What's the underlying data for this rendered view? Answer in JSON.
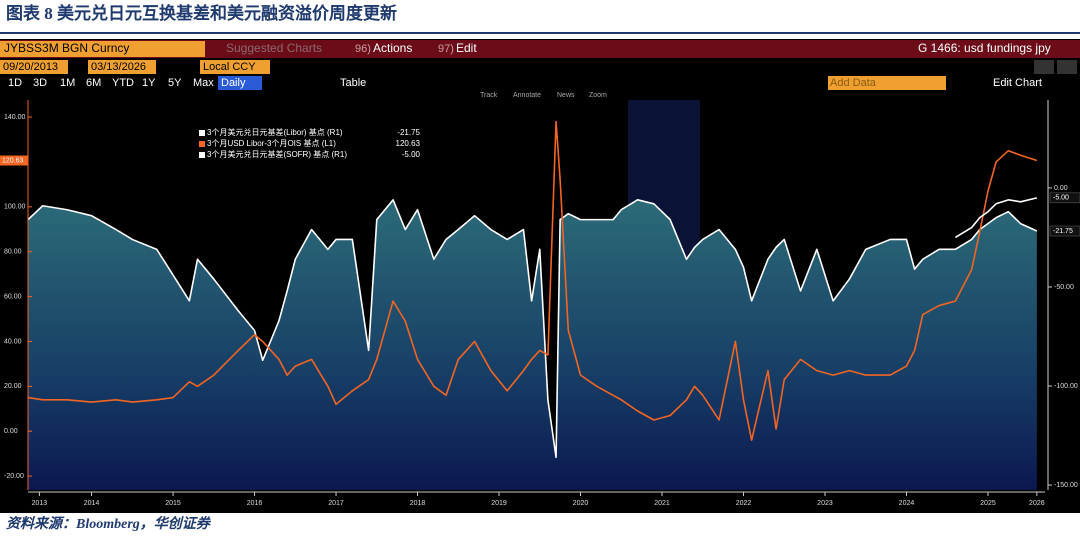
{
  "header": {
    "title": "图表 8  美元兑日元互换基差和美元融资溢价周度更新"
  },
  "toolbar": {
    "ticker": "JYBSS3M BGN Curncy",
    "suggested": "Suggested Charts",
    "actions_num": "96)",
    "actions": "Actions",
    "edit_num": "97)",
    "edit": "Edit",
    "chart_name": "G 1466: usd fundings jpy",
    "start_date": "09/20/2013",
    "end_date": "03/13/2026",
    "currency": "Local CCY",
    "periods": [
      "1D",
      "3D",
      "1M",
      "6M",
      "YTD",
      "1Y",
      "5Y",
      "Max"
    ],
    "frequency": "Daily",
    "table": "Table",
    "add_data": "Add Data",
    "edit_chart": "Edit Chart",
    "tools": [
      "Track",
      "Annotate",
      "News",
      "Zoom"
    ]
  },
  "chart_data": {
    "type": "line",
    "x": [
      2013.72,
      2013.9,
      2014.2,
      2014.5,
      2014.8,
      2015.0,
      2015.3,
      2015.5,
      2015.7,
      2015.8,
      2016.0,
      2016.3,
      2016.5,
      2016.6,
      2016.8,
      2016.9,
      2017.0,
      2017.2,
      2017.4,
      2017.5,
      2017.7,
      2017.9,
      2018.0,
      2018.2,
      2018.35,
      2018.5,
      2018.7,
      2018.85,
      2019.0,
      2019.2,
      2019.4,
      2019.6,
      2019.8,
      2019.9,
      2020.0,
      2020.1,
      2020.2,
      2020.25,
      2020.35,
      2020.5,
      2020.7,
      2020.9,
      2021.0,
      2021.2,
      2021.4,
      2021.6,
      2021.8,
      2021.9,
      2022.0,
      2022.2,
      2022.4,
      2022.5,
      2022.6,
      2022.8,
      2022.9,
      2023.0,
      2023.2,
      2023.4,
      2023.6,
      2023.8,
      2024.0,
      2024.3,
      2024.5,
      2024.6,
      2024.7,
      2024.9,
      2025.1,
      2025.3,
      2025.4,
      2025.5,
      2025.6,
      2025.75,
      2025.9,
      2026.1
    ],
    "xlim": [
      2013.72,
      2026.2
    ],
    "xticks": [
      {
        "value": 2013.86,
        "label": "2013"
      },
      {
        "value": 2014.5,
        "label": "2014"
      },
      {
        "value": 2015.5,
        "label": "2015"
      },
      {
        "value": 2016.5,
        "label": "2016"
      },
      {
        "value": 2017.5,
        "label": "2017"
      },
      {
        "value": 2018.5,
        "label": "2018"
      },
      {
        "value": 2019.5,
        "label": "2019"
      },
      {
        "value": 2020.5,
        "label": "2020"
      },
      {
        "value": 2021.5,
        "label": "2021"
      },
      {
        "value": 2022.5,
        "label": "2022"
      },
      {
        "value": 2023.5,
        "label": "2023"
      },
      {
        "value": 2024.5,
        "label": "2024"
      },
      {
        "value": 2025.5,
        "label": "2025"
      },
      {
        "value": 2026.1,
        "label": "2026"
      }
    ],
    "ylim": [
      -26.2,
      147.6
    ],
    "yticks": [
      {
        "value": -20,
        "label": "-20.00"
      },
      {
        "value": 0,
        "label": "0.00"
      },
      {
        "value": 20,
        "label": "20.00"
      },
      {
        "value": 40,
        "label": "40.00"
      },
      {
        "value": 60,
        "label": "60.00"
      },
      {
        "value": 80,
        "label": "80.00"
      },
      {
        "value": 100,
        "label": "100.00"
      },
      {
        "value": 140,
        "label": "140.00"
      }
    ],
    "y2lim": [
      -152.5,
      44.4
    ],
    "y2ticks": [
      {
        "value": 0,
        "label": "0.00"
      },
      {
        "value": -50,
        "label": "-50.00"
      },
      {
        "value": -100,
        "label": "-100.00"
      },
      {
        "value": -150,
        "label": "-150.00"
      }
    ],
    "grid": false,
    "series": [
      {
        "name": "3个月美元兑日元基差(Libor) 基点 (R1)",
        "color": "#ffffff",
        "axis": "y2",
        "area": true,
        "values": [
          -16,
          -9,
          -11,
          -14,
          -21,
          -26,
          -31,
          -44,
          -57,
          -36,
          -46,
          -62,
          -72,
          -87,
          -67,
          -52,
          -36,
          -21,
          -31,
          -26,
          -26,
          -82,
          -16,
          -6,
          -21,
          -11,
          -36,
          -26,
          -21,
          -14,
          -21,
          -26,
          -21,
          -57,
          -31,
          -107,
          -136,
          -16,
          -13,
          -16,
          -16,
          -16,
          -11,
          -6,
          -8,
          -16,
          -36,
          -30,
          -26,
          -21,
          -31,
          -40,
          -57,
          -36,
          -30,
          -26,
          -52,
          -31,
          -57,
          -46,
          -31,
          -26,
          -26,
          -41,
          -36,
          -31,
          -31,
          -26,
          -21,
          -18,
          -15,
          -12,
          -18,
          -21.75
        ]
      },
      {
        "name": "3个月USD Libor-3个月OIS 基点 (L1)",
        "color": "#f26522",
        "values": [
          15,
          14,
          14,
          13,
          14,
          13,
          14,
          15,
          22,
          20,
          25,
          36,
          43,
          40,
          32,
          25,
          29,
          32,
          20,
          12,
          18,
          23,
          32,
          58,
          49,
          32,
          20,
          16,
          32,
          40,
          27,
          18,
          27,
          32,
          36,
          34,
          138,
          112,
          45,
          25,
          20,
          16,
          14,
          9,
          5,
          7,
          14,
          20,
          16,
          5,
          40,
          14,
          -4,
          27,
          1,
          23,
          32,
          27,
          25,
          27,
          25,
          25,
          29,
          36,
          52,
          56,
          58,
          72,
          89,
          107,
          120,
          125,
          123,
          120.63
        ]
      },
      {
        "name": "3个月美元兑日元基差(SOFR) 基点 (R1)",
        "color": "#ffffff",
        "axis": "y2",
        "values": [
          null,
          null,
          null,
          null,
          null,
          null,
          null,
          null,
          null,
          null,
          null,
          null,
          null,
          null,
          null,
          null,
          null,
          null,
          null,
          null,
          null,
          null,
          null,
          null,
          null,
          null,
          null,
          null,
          null,
          null,
          null,
          null,
          null,
          null,
          null,
          null,
          null,
          null,
          null,
          null,
          null,
          null,
          null,
          null,
          null,
          null,
          null,
          null,
          null,
          null,
          null,
          null,
          null,
          null,
          null,
          null,
          null,
          null,
          null,
          null,
          null,
          null,
          null,
          null,
          null,
          null,
          -25,
          -20,
          -15,
          -12,
          -8,
          -6,
          -7,
          -5
        ],
        "value_labels": [
          null,
          null,
          null,
          null,
          null,
          null,
          null,
          null,
          null,
          null,
          null,
          null,
          null,
          null,
          null,
          null,
          null,
          null,
          null,
          null,
          null,
          null,
          null,
          null,
          null,
          null,
          null,
          null,
          null,
          null,
          null,
          null,
          null,
          null,
          null,
          null,
          null,
          null,
          null,
          null,
          null,
          null,
          null,
          null,
          null,
          null,
          null,
          null,
          null,
          null,
          null,
          null,
          null,
          null,
          null,
          null,
          null,
          null,
          null,
          null,
          null,
          null,
          null,
          null,
          null,
          null,
          null,
          null,
          null,
          null,
          null,
          null,
          null,
          "-5.00"
        ]
      }
    ]
  },
  "footer": {
    "source": "资料来源：Bloomberg，华创证券"
  }
}
